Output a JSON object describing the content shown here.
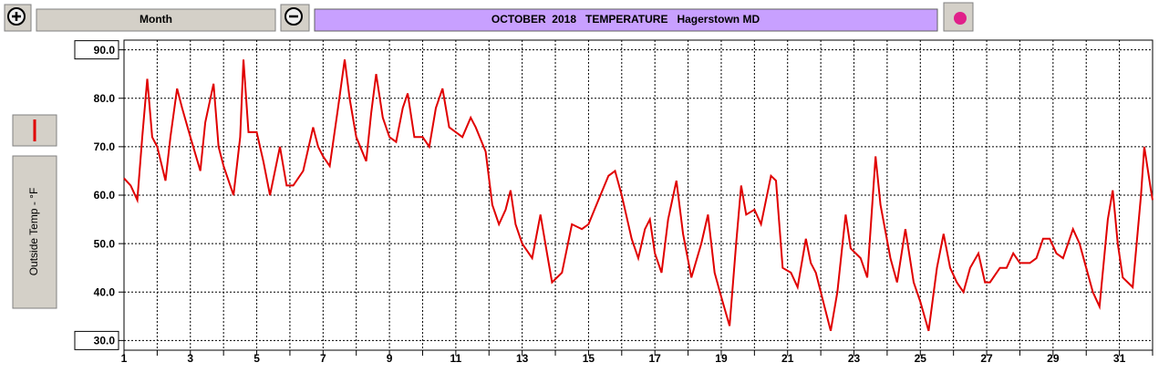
{
  "toolbar": {
    "period": "Month",
    "title": "OCTOBER  2018   TEMPERATURE   Hagerstown MD"
  },
  "chart_data": {
    "type": "line",
    "xlim": [
      1,
      32
    ],
    "xticks": [
      1,
      3,
      5,
      7,
      9,
      11,
      13,
      15,
      17,
      19,
      21,
      23,
      25,
      27,
      29,
      31
    ],
    "xminorticks": [
      2,
      4,
      6,
      8,
      10,
      12,
      14,
      16,
      18,
      20,
      22,
      24,
      26,
      28,
      30,
      32
    ],
    "ylim": [
      28,
      92
    ],
    "yticks": [
      {
        "value": 90,
        "label": "90.0"
      },
      {
        "value": 80,
        "label": "80.0"
      },
      {
        "value": 70,
        "label": "70.0"
      },
      {
        "value": 60,
        "label": "60.0"
      },
      {
        "value": 50,
        "label": "50.0"
      },
      {
        "value": 40,
        "label": "40.0"
      },
      {
        "value": 30,
        "label": "30.0"
      }
    ],
    "grid": true,
    "x": [
      1.0,
      1.2,
      1.4,
      1.55,
      1.7,
      1.85,
      2.0,
      2.25,
      2.4,
      2.6,
      2.75,
      3.0,
      3.3,
      3.45,
      3.7,
      3.85,
      4.0,
      4.3,
      4.5,
      4.6,
      4.75,
      5.0,
      5.2,
      5.4,
      5.7,
      5.9,
      6.1,
      6.4,
      6.7,
      6.85,
      7.0,
      7.2,
      7.45,
      7.65,
      7.8,
      8.0,
      8.3,
      8.45,
      8.6,
      8.8,
      9.0,
      9.2,
      9.4,
      9.55,
      9.75,
      10.0,
      10.2,
      10.4,
      10.6,
      10.8,
      11.0,
      11.2,
      11.45,
      11.6,
      11.9,
      12.1,
      12.3,
      12.5,
      12.65,
      12.8,
      13.0,
      13.3,
      13.55,
      13.75,
      13.9,
      14.2,
      14.5,
      14.8,
      15.0,
      15.3,
      15.6,
      15.8,
      16.0,
      16.3,
      16.5,
      16.7,
      16.85,
      17.0,
      17.2,
      17.4,
      17.65,
      17.85,
      18.1,
      18.4,
      18.6,
      18.8,
      19.0,
      19.25,
      19.45,
      19.6,
      19.75,
      20.0,
      20.2,
      20.5,
      20.65,
      20.85,
      21.1,
      21.3,
      21.55,
      21.7,
      21.85,
      22.0,
      22.3,
      22.5,
      22.75,
      22.9,
      23.2,
      23.4,
      23.65,
      23.8,
      24.1,
      24.3,
      24.55,
      24.8,
      25.0,
      25.25,
      25.5,
      25.7,
      25.9,
      26.1,
      26.3,
      26.5,
      26.75,
      26.95,
      27.1,
      27.4,
      27.6,
      27.8,
      28.0,
      28.3,
      28.5,
      28.7,
      28.9,
      29.1,
      29.3,
      29.6,
      29.8,
      30.0,
      30.2,
      30.4,
      30.65,
      30.8,
      30.95,
      31.1,
      31.4,
      31.65,
      31.75,
      31.95,
      32.0
    ],
    "series": [
      {
        "name": "Outside Temp - °F",
        "color": "#e00000",
        "values": [
          63.5,
          62,
          59,
          72,
          84,
          72,
          70,
          63,
          72,
          82,
          78,
          72,
          65,
          75,
          83,
          70,
          66,
          60,
          72,
          88,
          73,
          73,
          67,
          60,
          70,
          62,
          62,
          65,
          74,
          70,
          68,
          66,
          78,
          88,
          80,
          72,
          67,
          77,
          85,
          76,
          72,
          71,
          78,
          81,
          72,
          72,
          70,
          78,
          82,
          74,
          73,
          72,
          76,
          74,
          69,
          58,
          54,
          57,
          61,
          54,
          50,
          47,
          56,
          48,
          42,
          44,
          54,
          53,
          54,
          59,
          64,
          65,
          60,
          51,
          47,
          53,
          55,
          48,
          44,
          55,
          63,
          52,
          43,
          50,
          56,
          44,
          39,
          33,
          50,
          62,
          56,
          57,
          54,
          64,
          63,
          45,
          44,
          41,
          51,
          46,
          44,
          40,
          32,
          40,
          56,
          49,
          47,
          43,
          68,
          58,
          47,
          42,
          53,
          42,
          38,
          32,
          45,
          52,
          45,
          42,
          40,
          45,
          48,
          42,
          42,
          45,
          45,
          48,
          46,
          46,
          47,
          51,
          51,
          48,
          47,
          53,
          50,
          45,
          40,
          37,
          55,
          61,
          50,
          43,
          41,
          60,
          70,
          61,
          59
        ]
      }
    ]
  }
}
